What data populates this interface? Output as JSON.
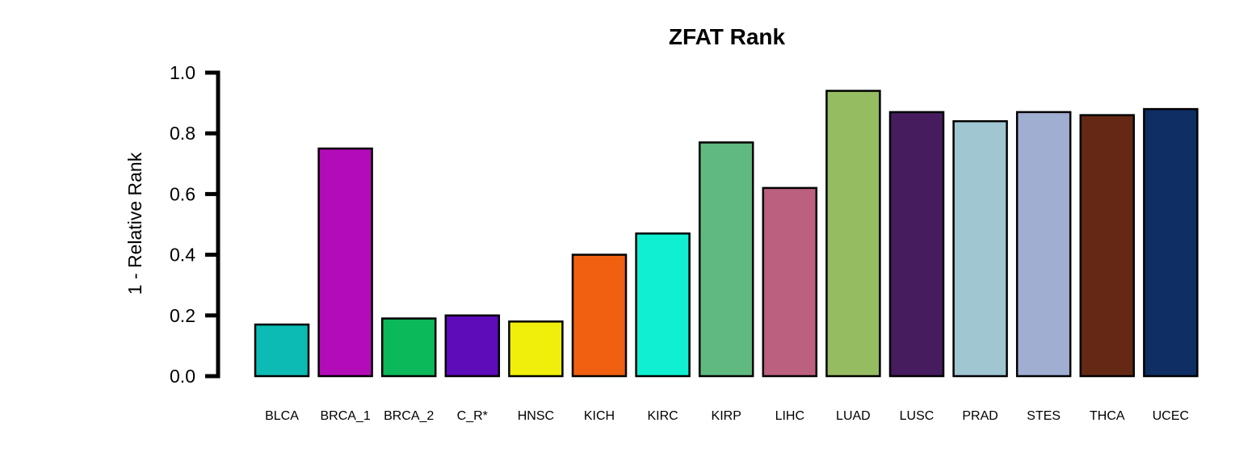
{
  "chart_data": {
    "type": "bar",
    "title": "ZFAT Rank",
    "xlabel": "",
    "ylabel": "1 - Relative Rank",
    "ylim": [
      0,
      1.0
    ],
    "yticks": [
      "0.0",
      "0.2",
      "0.4",
      "0.6",
      "0.8",
      "1.0"
    ],
    "grid": false,
    "categories": [
      "BLCA",
      "BRCA_1",
      "BRCA_2",
      "C_R*",
      "HNSC",
      "KICH",
      "KIRC",
      "KIRP",
      "LIHC",
      "LUAD",
      "LUSC",
      "PRAD",
      "STES",
      "THCA",
      "UCEC"
    ],
    "values": [
      0.17,
      0.75,
      0.19,
      0.2,
      0.18,
      0.4,
      0.47,
      0.77,
      0.62,
      0.94,
      0.87,
      0.84,
      0.87,
      0.86,
      0.88
    ],
    "colors": [
      "#0BBBB4",
      "#B40BB9",
      "#0BB85A",
      "#5E0BB9",
      "#EFEF0B",
      "#F06010",
      "#10EFD2",
      "#60BA80",
      "#BC6080",
      "#96BC62",
      "#461C5E",
      "#A0C6D2",
      "#A0AED2",
      "#642814",
      "#0E2E64"
    ]
  }
}
